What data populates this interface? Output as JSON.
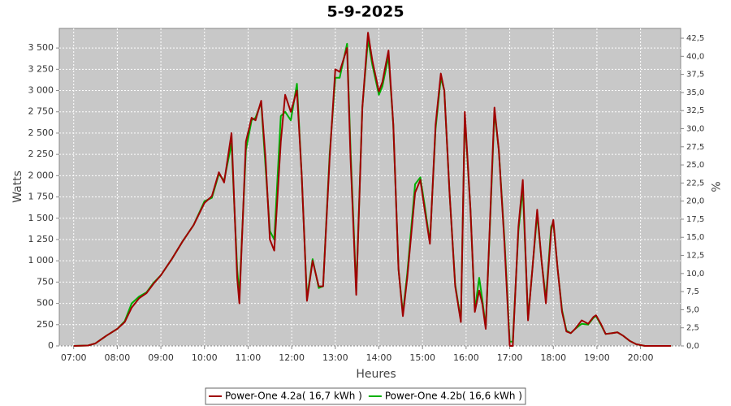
{
  "chart_data": {
    "type": "line",
    "title": "5-9-2025",
    "xlabel": "Heures",
    "ylabel": "Watts",
    "y2label": "%",
    "grid": true,
    "legend": "bottom",
    "xlim": [
      6.67,
      20.92
    ],
    "xticks": [
      {
        "value": 7,
        "label": "07:00"
      },
      {
        "value": 8,
        "label": "08:00"
      },
      {
        "value": 9,
        "label": "09:00"
      },
      {
        "value": 10,
        "label": "10:00"
      },
      {
        "value": 11,
        "label": "11:00"
      },
      {
        "value": 12,
        "label": "12:00"
      },
      {
        "value": 13,
        "label": "13:00"
      },
      {
        "value": 14,
        "label": "14:00"
      },
      {
        "value": 15,
        "label": "15:00"
      },
      {
        "value": 16,
        "label": "16:00"
      },
      {
        "value": 17,
        "label": "17:00"
      },
      {
        "value": 18,
        "label": "18:00"
      },
      {
        "value": 19,
        "label": "19:00"
      },
      {
        "value": 20,
        "label": "20:00"
      }
    ],
    "ylim": [
      0,
      3730
    ],
    "yticks": [
      0,
      250,
      500,
      750,
      {
        "value": 1000,
        "label": "1 000"
      },
      {
        "value": 1250,
        "label": "1 250"
      },
      {
        "value": 1500,
        "label": "1 500"
      },
      {
        "value": 1750,
        "label": "1 750"
      },
      {
        "value": 2000,
        "label": "2 000"
      },
      {
        "value": 2250,
        "label": "2 250"
      },
      {
        "value": 2500,
        "label": "2 500"
      },
      {
        "value": 2750,
        "label": "2 750"
      },
      {
        "value": 3000,
        "label": "3 000"
      },
      {
        "value": 3250,
        "label": "3 250"
      },
      {
        "value": 3500,
        "label": "3 500"
      }
    ],
    "y2lim": [
      0,
      43.85
    ],
    "y2ticks": [
      {
        "value": 0,
        "label": "0,0"
      },
      {
        "value": 2.5,
        "label": "2,5"
      },
      {
        "value": 5,
        "label": "5,0"
      },
      {
        "value": 7.5,
        "label": "7,5"
      },
      {
        "value": 10,
        "label": "10,0"
      },
      {
        "value": 12.5,
        "label": "12,5"
      },
      {
        "value": 15,
        "label": "15,0"
      },
      {
        "value": 17.5,
        "label": "17,5"
      },
      {
        "value": 20,
        "label": "20,0"
      },
      {
        "value": 22.5,
        "label": "22,5"
      },
      {
        "value": 25,
        "label": "25,0"
      },
      {
        "value": 27.5,
        "label": "27,5"
      },
      {
        "value": 30,
        "label": "30,0"
      },
      {
        "value": 32.5,
        "label": "32,5"
      },
      {
        "value": 35,
        "label": "35,0"
      },
      {
        "value": 37.5,
        "label": "37,5"
      },
      {
        "value": 40,
        "label": "40,0"
      },
      {
        "value": 42.5,
        "label": "42,5"
      }
    ],
    "x": [
      7.0,
      7.33,
      7.5,
      7.75,
      8.0,
      8.17,
      8.33,
      8.5,
      8.67,
      8.83,
      9.0,
      9.25,
      9.5,
      9.75,
      10.0,
      10.17,
      10.33,
      10.45,
      10.62,
      10.75,
      10.8,
      10.95,
      11.08,
      11.17,
      11.3,
      11.4,
      11.5,
      11.6,
      11.75,
      11.85,
      11.98,
      12.12,
      12.23,
      12.35,
      12.48,
      12.62,
      12.72,
      12.87,
      13.0,
      13.1,
      13.27,
      13.35,
      13.48,
      13.62,
      13.75,
      13.85,
      14.0,
      14.08,
      14.22,
      14.33,
      14.45,
      14.55,
      14.65,
      14.83,
      14.95,
      15.05,
      15.17,
      15.3,
      15.42,
      15.5,
      15.62,
      15.75,
      15.88,
      15.97,
      16.1,
      16.2,
      16.3,
      16.37,
      16.45,
      16.55,
      16.65,
      16.75,
      16.88,
      17.0,
      17.07,
      17.2,
      17.3,
      17.42,
      17.52,
      17.63,
      17.73,
      17.83,
      17.95,
      18.0,
      18.1,
      18.2,
      18.3,
      18.4,
      18.5,
      18.65,
      18.8,
      18.92,
      18.98,
      19.1,
      19.2,
      19.35,
      19.47,
      19.6,
      19.75,
      19.9,
      20.1,
      20.7
    ],
    "series": [
      {
        "name": "Power-One 4.2a( 16,7 kWh )",
        "color": "#a00000",
        "values": [
          0,
          5,
          30,
          120,
          200,
          280,
          450,
          560,
          620,
          730,
          830,
          1020,
          1230,
          1420,
          1680,
          1760,
          2040,
          1920,
          2500,
          800,
          500,
          2400,
          2680,
          2650,
          2880,
          2200,
          1250,
          1120,
          2400,
          2950,
          2750,
          3000,
          2000,
          530,
          1000,
          700,
          700,
          2200,
          3250,
          3220,
          3500,
          2200,
          600,
          2800,
          3680,
          3350,
          2990,
          3100,
          3470,
          2600,
          900,
          350,
          800,
          1800,
          1950,
          1600,
          1200,
          2600,
          3200,
          3000,
          1800,
          700,
          280,
          2750,
          1600,
          400,
          650,
          500,
          200,
          1500,
          2800,
          2300,
          1200,
          0,
          0,
          1400,
          1950,
          300,
          900,
          1600,
          1000,
          500,
          1350,
          1480,
          900,
          400,
          170,
          150,
          200,
          300,
          260,
          340,
          360,
          250,
          140,
          150,
          160,
          120,
          60,
          20,
          0,
          0
        ]
      },
      {
        "name": "Power-One 4.2b( 16,6 kWh )",
        "color": "#00b000",
        "values": [
          0,
          5,
          30,
          120,
          200,
          290,
          500,
          580,
          630,
          740,
          830,
          1020,
          1230,
          1420,
          1700,
          1740,
          2020,
          1940,
          2380,
          900,
          600,
          2300,
          2650,
          2680,
          2860,
          2100,
          1350,
          1250,
          2700,
          2750,
          2650,
          3080,
          2000,
          560,
          1020,
          680,
          700,
          2250,
          3150,
          3150,
          3550,
          2300,
          650,
          2800,
          3600,
          3300,
          2950,
          3050,
          3400,
          2600,
          900,
          380,
          850,
          1900,
          1980,
          1650,
          1220,
          2550,
          3150,
          3000,
          1800,
          720,
          300,
          2700,
          1600,
          420,
          800,
          550,
          220,
          1450,
          2750,
          2300,
          1250,
          50,
          50,
          1350,
          1850,
          320,
          900,
          1550,
          1000,
          550,
          1400,
          1450,
          900,
          420,
          180,
          150,
          200,
          260,
          250,
          330,
          350,
          240,
          140,
          150,
          160,
          120,
          60,
          20,
          0,
          0
        ]
      }
    ]
  }
}
